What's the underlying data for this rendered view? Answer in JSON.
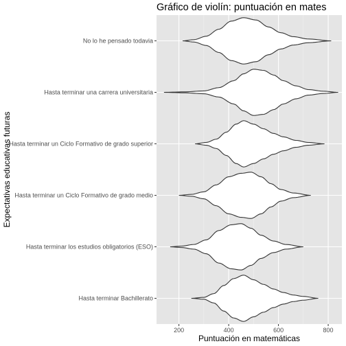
{
  "chart_data": {
    "type": "violin",
    "title": "Gráfico de violín: puntuación en mates",
    "xlabel": "Puntuación en matemáticas",
    "ylabel": "Expectativas educativas futuras",
    "xlim": [
      110,
      855
    ],
    "xticks": [
      200,
      400,
      600,
      800
    ],
    "grid": true,
    "background": "#e5e5e5",
    "violin_fill": "#ffffff",
    "violin_stroke": "#333333",
    "categories": [
      "Hasta terminar Bachillerato",
      "Hasta terminar los estudios obligatorios (ESO)",
      "Hasta terminar un Ciclo Formativo de grado medio",
      "Hasta terminar un Ciclo Formativo de grado superior",
      "Hasta terminar una carrera universitaria",
      "No lo he pensado todavia"
    ],
    "violins": [
      {
        "category": "Hasta terminar Bachillerato",
        "min": 250,
        "max": 760,
        "profile": [
          [
            250,
            0
          ],
          [
            300,
            0.04
          ],
          [
            340,
            0.2
          ],
          [
            380,
            0.55
          ],
          [
            420,
            0.85
          ],
          [
            460,
            1.0
          ],
          [
            500,
            0.8
          ],
          [
            540,
            0.6
          ],
          [
            580,
            0.4
          ],
          [
            620,
            0.25
          ],
          [
            660,
            0.14
          ],
          [
            700,
            0.08
          ],
          [
            760,
            0
          ]
        ]
      },
      {
        "category": "Hasta terminar los estudios obligatorios (ESO)",
        "min": 165,
        "max": 700,
        "profile": [
          [
            165,
            0
          ],
          [
            210,
            0.03
          ],
          [
            260,
            0.1
          ],
          [
            310,
            0.3
          ],
          [
            360,
            0.7
          ],
          [
            410,
            0.95
          ],
          [
            450,
            1.0
          ],
          [
            490,
            0.8
          ],
          [
            530,
            0.5
          ],
          [
            580,
            0.25
          ],
          [
            630,
            0.1
          ],
          [
            700,
            0
          ]
        ]
      },
      {
        "category": "Hasta terminar un Ciclo Formativo de grado medio",
        "min": 200,
        "max": 730,
        "profile": [
          [
            200,
            0
          ],
          [
            250,
            0.04
          ],
          [
            300,
            0.15
          ],
          [
            350,
            0.45
          ],
          [
            400,
            0.8
          ],
          [
            450,
            0.95
          ],
          [
            490,
            1.0
          ],
          [
            530,
            0.8
          ],
          [
            570,
            0.5
          ],
          [
            610,
            0.25
          ],
          [
            660,
            0.1
          ],
          [
            730,
            0
          ]
        ]
      },
      {
        "category": "Hasta terminar un Ciclo Formativo de grado superior",
        "min": 265,
        "max": 785,
        "profile": [
          [
            265,
            0
          ],
          [
            310,
            0.06
          ],
          [
            350,
            0.2
          ],
          [
            390,
            0.5
          ],
          [
            430,
            0.85
          ],
          [
            460,
            1.0
          ],
          [
            500,
            0.85
          ],
          [
            540,
            0.65
          ],
          [
            580,
            0.45
          ],
          [
            620,
            0.3
          ],
          [
            670,
            0.15
          ],
          [
            720,
            0.06
          ],
          [
            785,
            0
          ]
        ]
      },
      {
        "category": "Hasta terminar una carrera universitaria",
        "min": 140,
        "max": 840,
        "profile": [
          [
            140,
            0
          ],
          [
            220,
            0.02
          ],
          [
            300,
            0.06
          ],
          [
            360,
            0.2
          ],
          [
            420,
            0.5
          ],
          [
            460,
            0.8
          ],
          [
            500,
            1.0
          ],
          [
            540,
            0.95
          ],
          [
            580,
            0.75
          ],
          [
            620,
            0.5
          ],
          [
            670,
            0.28
          ],
          [
            720,
            0.12
          ],
          [
            780,
            0.05
          ],
          [
            840,
            0
          ]
        ]
      },
      {
        "category": "No lo he pensado todavia",
        "min": 215,
        "max": 812,
        "profile": [
          [
            215,
            0
          ],
          [
            260,
            0.05
          ],
          [
            310,
            0.2
          ],
          [
            360,
            0.5
          ],
          [
            410,
            0.85
          ],
          [
            460,
            1.0
          ],
          [
            510,
            0.9
          ],
          [
            560,
            0.6
          ],
          [
            610,
            0.35
          ],
          [
            660,
            0.18
          ],
          [
            720,
            0.08
          ],
          [
            812,
            0
          ]
        ]
      }
    ]
  }
}
